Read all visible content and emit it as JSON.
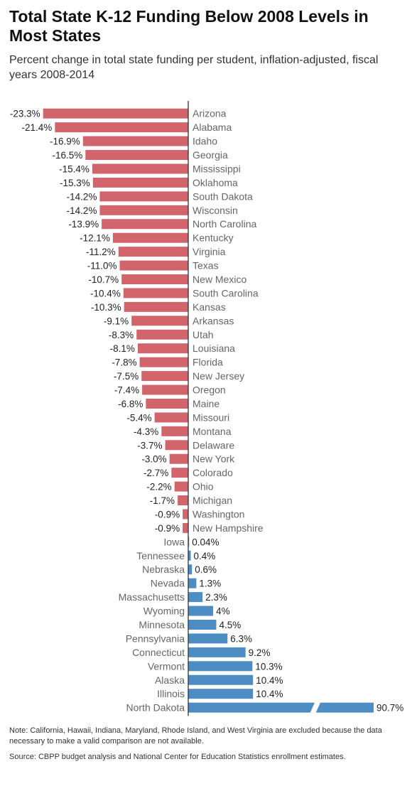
{
  "title": "Total State K-12 Funding Below 2008 Levels in Most States",
  "subtitle": "Percent change in total state funding per student, inflation-adjusted, fiscal years 2008-2014",
  "notes": {
    "note": "Note: California, Hawaii, Indiana, Maryland, Rhode Island, and West Virginia are excluded because the data necessary to make a valid comparison are not available.",
    "source": "Source: CBPP budget analysis and National Center for Education Statistics enrollment estimates."
  },
  "colors": {
    "negative": "#d2646c",
    "positive": "#4d8dc3",
    "axis": "#333333",
    "label": "#666666",
    "value": "#222222"
  },
  "chart_data": {
    "type": "bar",
    "orientation": "horizontal",
    "axis_break": true,
    "categories": [
      "Arizona",
      "Alabama",
      "Idaho",
      "Georgia",
      "Mississippi",
      "Oklahoma",
      "South Dakota",
      "Wisconsin",
      "North Carolina",
      "Kentucky",
      "Virginia",
      "Texas",
      "New Mexico",
      "South Carolina",
      "Kansas",
      "Arkansas",
      "Utah",
      "Louisiana",
      "Florida",
      "New Jersey",
      "Oregon",
      "Maine",
      "Missouri",
      "Montana",
      "Delaware",
      "New York",
      "Colorado",
      "Ohio",
      "Michigan",
      "Washington",
      "New Hampshire",
      "Iowa",
      "Tennessee",
      "Nebraska",
      "Nevada",
      "Massachusetts",
      "Wyoming",
      "Minnesota",
      "Pennsylvania",
      "Connecticut",
      "Vermont",
      "Alaska",
      "Illinois",
      "North Dakota"
    ],
    "values": [
      -23.3,
      -21.4,
      -16.9,
      -16.5,
      -15.4,
      -15.3,
      -14.2,
      -14.2,
      -13.9,
      -12.1,
      -11.2,
      -11.0,
      -10.7,
      -10.4,
      -10.3,
      -9.1,
      -8.3,
      -8.1,
      -7.8,
      -7.5,
      -7.4,
      -6.8,
      -5.4,
      -4.3,
      -3.7,
      -3.0,
      -2.7,
      -2.2,
      -1.7,
      -0.9,
      -0.9,
      0.04,
      0.4,
      0.6,
      1.3,
      2.3,
      4,
      4.5,
      6.3,
      9.2,
      10.3,
      10.4,
      10.4,
      90.7
    ],
    "value_labels": [
      "-23.3%",
      "-21.4%",
      "-16.9%",
      "-16.5%",
      "-15.4%",
      "-15.3%",
      "-14.2%",
      "-14.2%",
      "-13.9%",
      "-12.1%",
      "-11.2%",
      "-11.0%",
      "-10.7%",
      "-10.4%",
      "-10.3%",
      "-9.1%",
      "-8.3%",
      "-8.1%",
      "-7.8%",
      "-7.5%",
      "-7.4%",
      "-6.8%",
      "-5.4%",
      "-4.3%",
      "-3.7%",
      "-3.0%",
      "-2.7%",
      "-2.2%",
      "-1.7%",
      "-0.9%",
      "-0.9%",
      "0.04%",
      "0.4%",
      "0.6%",
      "1.3%",
      "2.3%",
      "4%",
      "4.5%",
      "6.3%",
      "9.2%",
      "10.3%",
      "10.4%",
      "10.4%",
      "90.7%"
    ],
    "grid": false,
    "legend": "none"
  }
}
